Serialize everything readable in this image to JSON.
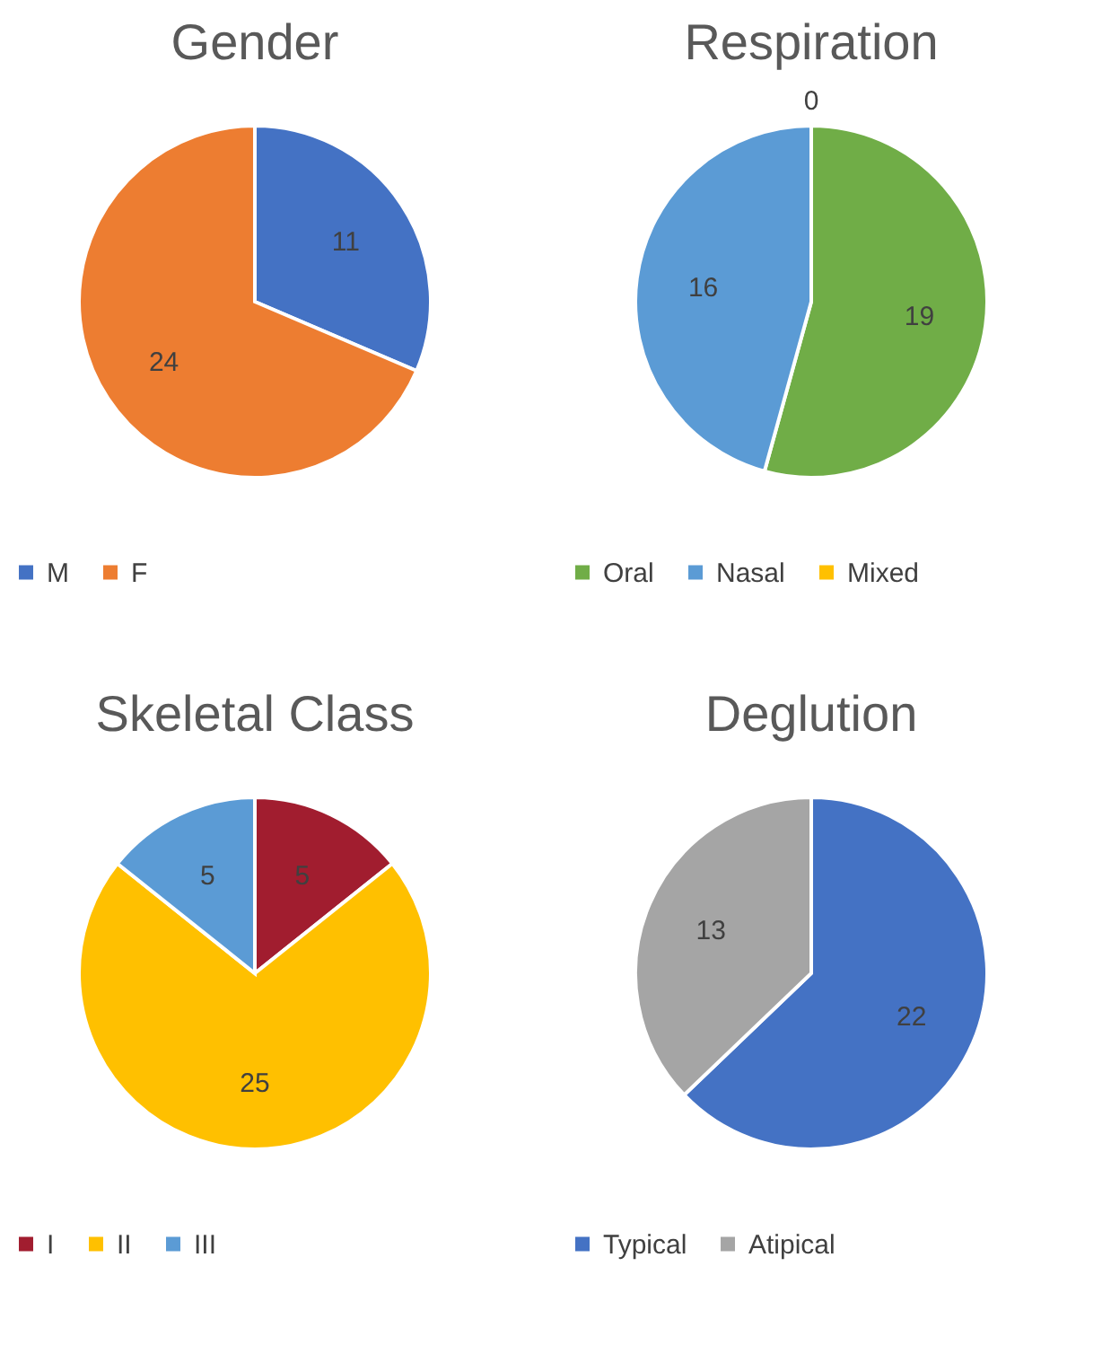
{
  "chart_data": [
    {
      "type": "pie",
      "title": "Gender",
      "categories": [
        "M",
        "F"
      ],
      "values": [
        11,
        24
      ],
      "colors": [
        "#4472c4",
        "#ed7d31"
      ],
      "data_labels": true,
      "legend": "bottom"
    },
    {
      "type": "pie",
      "title": "Respiration",
      "categories": [
        "Oral",
        "Nasal",
        "Mixed"
      ],
      "values": [
        19,
        16,
        0
      ],
      "value_labels": [
        "19",
        "16",
        "0"
      ],
      "colors": [
        "#70ad47",
        "#5b9bd5",
        "#ffc000"
      ],
      "legend": "bottom"
    },
    {
      "type": "pie",
      "title": "Skeletal Class",
      "categories": [
        "I",
        "II",
        "III"
      ],
      "values": [
        5,
        25,
        5
      ],
      "colors": [
        "#a11d2f",
        "#ffc000",
        "#5b9bd5"
      ],
      "data_labels": true,
      "legend": "bottom"
    },
    {
      "type": "pie",
      "title": "Deglution",
      "categories": [
        "Typical",
        "Atipical"
      ],
      "values": [
        22,
        13
      ],
      "colors": [
        "#4472c4",
        "#a5a5a5"
      ],
      "data_labels": true,
      "legend": "bottom"
    }
  ]
}
